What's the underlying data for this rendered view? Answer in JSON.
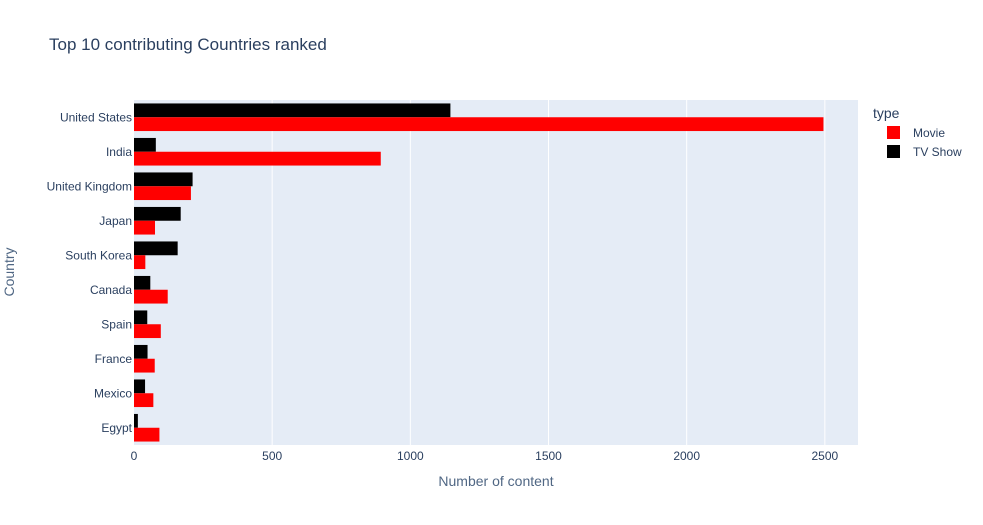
{
  "chart_data": {
    "type": "bar",
    "orientation": "horizontal",
    "title": "Top 10 contributing Countries ranked",
    "xlabel": "Number of content",
    "ylabel": "Country",
    "categories": [
      "United States",
      "India",
      "United Kingdom",
      "Japan",
      "South Korea",
      "Canada",
      "Spain",
      "France",
      "Mexico",
      "Egypt"
    ],
    "series": [
      {
        "name": "Movie",
        "color": "#ff0000",
        "values": [
          2495,
          893,
          206,
          76,
          41,
          122,
          97,
          75,
          70,
          92
        ]
      },
      {
        "name": "TV Show",
        "color": "#000000",
        "values": [
          1145,
          79,
          212,
          169,
          158,
          59,
          48,
          49,
          40,
          14
        ]
      }
    ],
    "xlim": [
      0,
      2620
    ],
    "xticks": [
      "0",
      "500",
      "1000",
      "1500",
      "2000",
      "2500"
    ],
    "xtick_values": [
      0,
      500,
      1000,
      1500,
      2000,
      2500
    ],
    "legend_title": "type",
    "legend_position": "top-right",
    "grid": true,
    "plot_background": "#e5ecf6"
  }
}
